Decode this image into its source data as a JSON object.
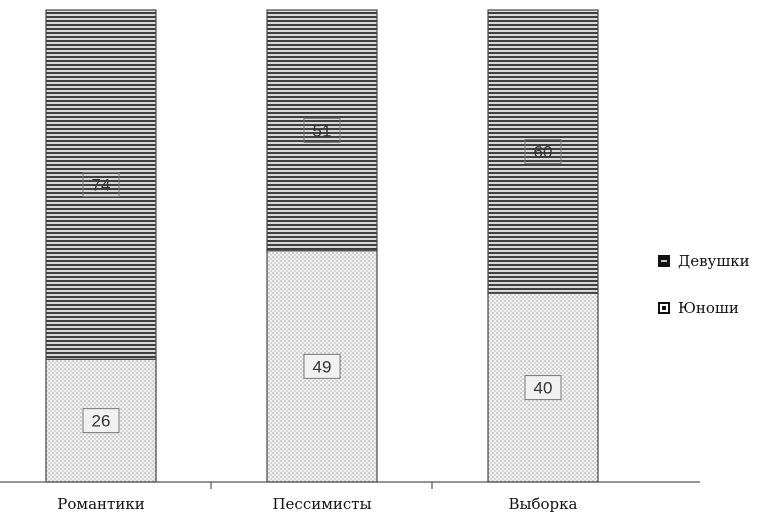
{
  "chart_data": {
    "type": "bar",
    "stacked": true,
    "percent_stacked": true,
    "categories": [
      "Романтики",
      "Пессимисты",
      "Выборка"
    ],
    "series": [
      {
        "name": "Юноши",
        "values": [
          26,
          49,
          40
        ],
        "pattern": "dotted",
        "color": "#e2e2e2"
      },
      {
        "name": "Девушки",
        "values": [
          74,
          51,
          60
        ],
        "pattern": "horizontal-lines",
        "color": "#555555"
      }
    ],
    "ylim": [
      0,
      100
    ],
    "grid": false,
    "legend_position": "right",
    "legend_order": [
      "Девушки",
      "Юноши"
    ]
  }
}
